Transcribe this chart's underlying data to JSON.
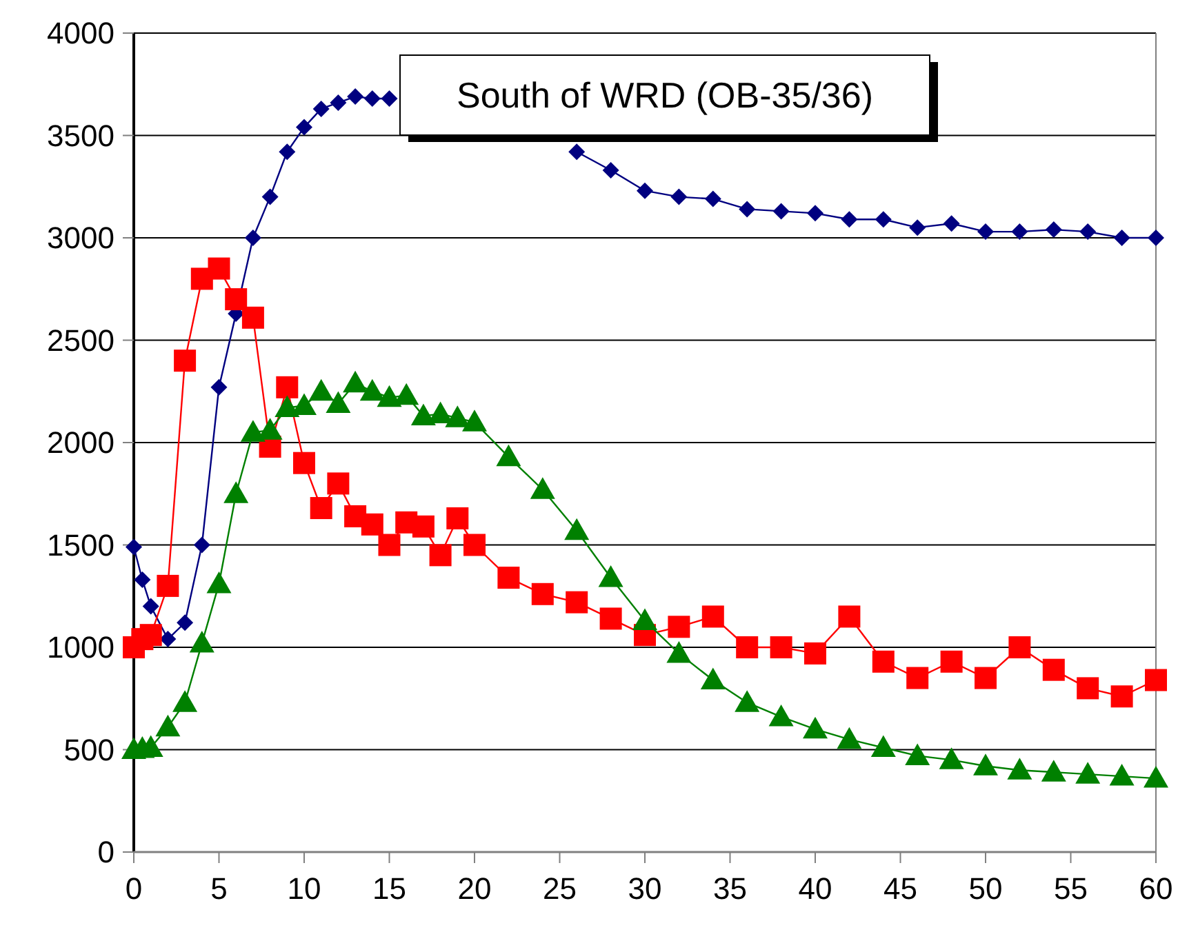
{
  "chart_data": {
    "type": "line",
    "title": "South of WRD (OB-35/36)",
    "xlim": [
      0,
      60
    ],
    "xticks": [
      0,
      5,
      10,
      15,
      20,
      25,
      30,
      35,
      40,
      45,
      50,
      55,
      60
    ],
    "ylim": [
      0,
      4000
    ],
    "yticks": [
      0,
      500,
      1000,
      1500,
      2000,
      2500,
      3000,
      3500,
      4000
    ],
    "grid": "y",
    "series": [
      {
        "color": "#000080",
        "marker": "diamond",
        "x": [
          0,
          0.5,
          1,
          2,
          3,
          4,
          5,
          6,
          7,
          8,
          9,
          10,
          11,
          12,
          13,
          14,
          15,
          16,
          18,
          20,
          22,
          24,
          26,
          28,
          30,
          32,
          34,
          36,
          38,
          40,
          42,
          44,
          46,
          48,
          50,
          52,
          54,
          56,
          58,
          60
        ],
        "values": [
          1490,
          1330,
          1200,
          1040,
          1120,
          1500,
          2270,
          2630,
          3000,
          3200,
          3420,
          3540,
          3630,
          3660,
          3690,
          3680,
          3680,
          null,
          null,
          null,
          null,
          null,
          3420,
          3330,
          3230,
          3200,
          3190,
          3140,
          3130,
          3120,
          3090,
          3090,
          3050,
          3070,
          3030,
          3030,
          3040,
          3030,
          3000,
          3000
        ]
      },
      {
        "color": "#ff0000",
        "marker": "square",
        "x": [
          0,
          0.5,
          1,
          2,
          3,
          4,
          5,
          6,
          7,
          8,
          9,
          10,
          11,
          12,
          13,
          14,
          15,
          16,
          17,
          18,
          19,
          20,
          22,
          24,
          26,
          28,
          30,
          32,
          34,
          36,
          38,
          40,
          42,
          44,
          46,
          48,
          50,
          52,
          54,
          56,
          58,
          60
        ],
        "values": [
          1000,
          1040,
          1060,
          1300,
          2400,
          2800,
          2850,
          2700,
          2610,
          1980,
          2270,
          1900,
          1680,
          1800,
          1640,
          1600,
          1500,
          1610,
          1590,
          1450,
          1630,
          1500,
          1340,
          1260,
          1220,
          1140,
          1060,
          1100,
          1150,
          1000,
          1000,
          970,
          1150,
          930,
          850,
          930,
          850,
          1000,
          890,
          800,
          760,
          840
        ]
      },
      {
        "color": "#008000",
        "marker": "triangle",
        "x": [
          0,
          0.5,
          1,
          2,
          3,
          4,
          5,
          6,
          7,
          8,
          9,
          10,
          11,
          12,
          13,
          14,
          15,
          16,
          17,
          18,
          19,
          20,
          22,
          24,
          26,
          28,
          30,
          32,
          34,
          36,
          38,
          40,
          42,
          44,
          46,
          48,
          50,
          52,
          54,
          56,
          58,
          60
        ],
        "values": [
          500,
          505,
          510,
          610,
          730,
          1020,
          1310,
          1750,
          2050,
          2060,
          2170,
          2180,
          2250,
          2190,
          2290,
          2250,
          2220,
          2230,
          2130,
          2140,
          2120,
          2100,
          1930,
          1770,
          1570,
          1340,
          1130,
          970,
          840,
          730,
          660,
          600,
          550,
          510,
          470,
          450,
          420,
          400,
          390,
          380,
          370,
          360
        ]
      }
    ]
  }
}
